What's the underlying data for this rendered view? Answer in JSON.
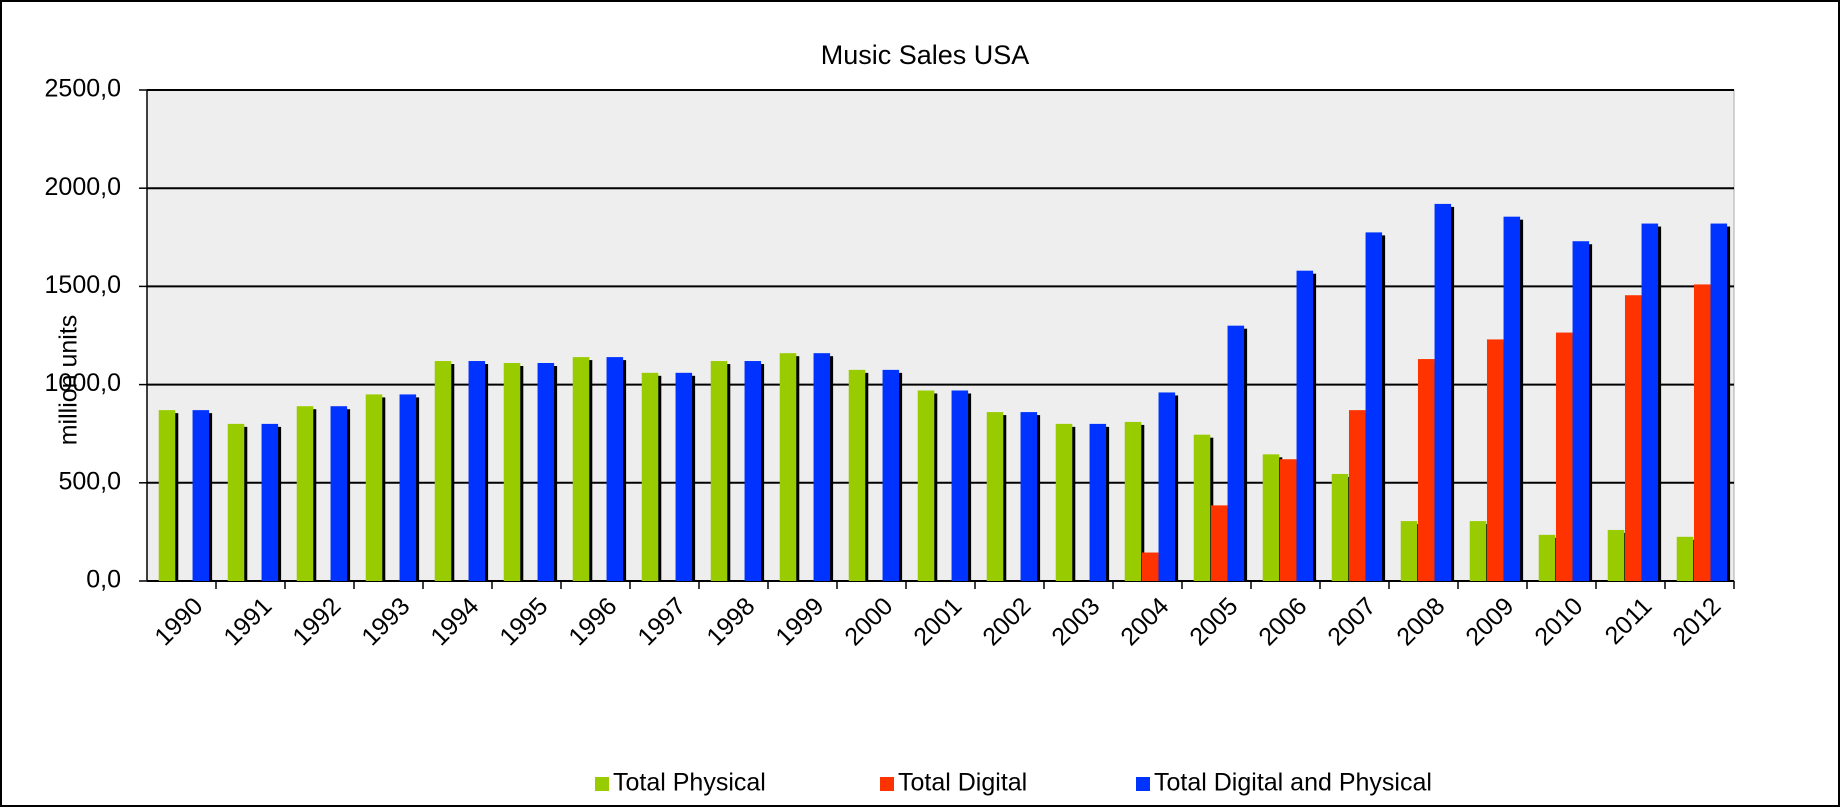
{
  "chart_data": {
    "type": "bar",
    "title": "Music Sales USA",
    "y_label": "million units",
    "categories": [
      "1990",
      "1991",
      "1992",
      "1993",
      "1994",
      "1995",
      "1996",
      "1997",
      "1998",
      "1999",
      "2000",
      "2001",
      "2002",
      "2003",
      "2004",
      "2005",
      "2006",
      "2007",
      "2008",
      "2009",
      "2010",
      "2011",
      "2012"
    ],
    "series": [
      {
        "name": "Total Physical",
        "color": "#99cc00",
        "values": [
          870,
          800,
          890,
          950,
          1120,
          1110,
          1140,
          1060,
          1120,
          1160,
          1075,
          970,
          860,
          800,
          810,
          745,
          645,
          545,
          305,
          305,
          235,
          260,
          225
        ]
      },
      {
        "name": "Total Digital",
        "color": "#ff3300",
        "values": [
          null,
          null,
          null,
          null,
          null,
          null,
          null,
          null,
          null,
          null,
          null,
          null,
          null,
          null,
          145,
          385,
          620,
          870,
          1130,
          1230,
          1265,
          1455,
          1510
        ]
      },
      {
        "name": "Total Digital and Physical",
        "color": "#0033ff",
        "values": [
          870,
          800,
          890,
          950,
          1120,
          1110,
          1140,
          1060,
          1120,
          1160,
          1075,
          970,
          860,
          800,
          960,
          1300,
          1580,
          1775,
          1920,
          1855,
          1730,
          1820,
          1820
        ]
      }
    ],
    "ylim": [
      0,
      2500
    ],
    "yticks": [
      {
        "value": 0,
        "label": "0,0"
      },
      {
        "value": 500,
        "label": "500,0"
      },
      {
        "value": 1000,
        "label": "1000,0"
      },
      {
        "value": 1500,
        "label": "1500,0"
      },
      {
        "value": 2000,
        "label": "2000,0"
      },
      {
        "value": 2500,
        "label": "2500,0"
      }
    ],
    "grid": true,
    "legend": "bottom"
  }
}
